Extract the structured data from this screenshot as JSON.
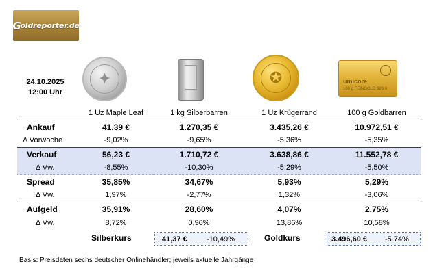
{
  "logo": {
    "text": "oldreporter.de",
    "initial": "G"
  },
  "date": "24.10.2025",
  "time": "12:00 Uhr",
  "products": [
    "1 Uz Maple Leaf",
    "1 kg Silberbarren",
    "1 Uz Krügerrand",
    "100 g Goldbarren"
  ],
  "gold_bar_brand": "umicore",
  "gold_bar_text": "100 g FEINGOLD 999,9",
  "rows": [
    {
      "label": "Ankauf",
      "type": "main",
      "values": [
        "41,39 €",
        "1.270,35 €",
        "3.435,26 €",
        "10.972,51 €"
      ]
    },
    {
      "label": "Δ Vorwoche",
      "type": "sub",
      "values": [
        "-9,02%",
        "-9,65%",
        "-5,36%",
        "-5,35%"
      ]
    },
    {
      "label": "Verkauf",
      "type": "main",
      "values": [
        "56,23 €",
        "1.710,72 €",
        "3.638,86 €",
        "11.552,78 €"
      ]
    },
    {
      "label": "Δ Vw.",
      "type": "sub",
      "values": [
        "-8,55%",
        "-10,30%",
        "-5,29%",
        "-5,50%"
      ]
    },
    {
      "label": "Spread",
      "type": "main",
      "values": [
        "35,85%",
        "34,67%",
        "5,93%",
        "5,29%"
      ]
    },
    {
      "label": "Δ Vw.",
      "type": "sub",
      "values": [
        "1,97%",
        "-2,77%",
        "1,32%",
        "-3,06%"
      ]
    },
    {
      "label": "Aufgeld",
      "type": "main",
      "values": [
        "35,91%",
        "28,60%",
        "4,07%",
        "2,75%"
      ]
    },
    {
      "label": "Δ Vw.",
      "type": "sub",
      "values": [
        "8,72%",
        "0,96%",
        "13,86%",
        "10,58%"
      ]
    }
  ],
  "silberkurs": {
    "label": "Silberkurs",
    "price": "41,37 €",
    "change": "-10,49%"
  },
  "goldkurs": {
    "label": "Goldkurs",
    "price": "3.496,60 €",
    "change": "-5,74%"
  },
  "footnote": "Basis: Preisdaten sechs deutscher Onlinehändler; jeweils aktuelle Jahrgänge",
  "colors": {
    "highlight": "#dbe3f5",
    "rule": "#1f3e8a",
    "logo_gold": "#a8833a"
  }
}
